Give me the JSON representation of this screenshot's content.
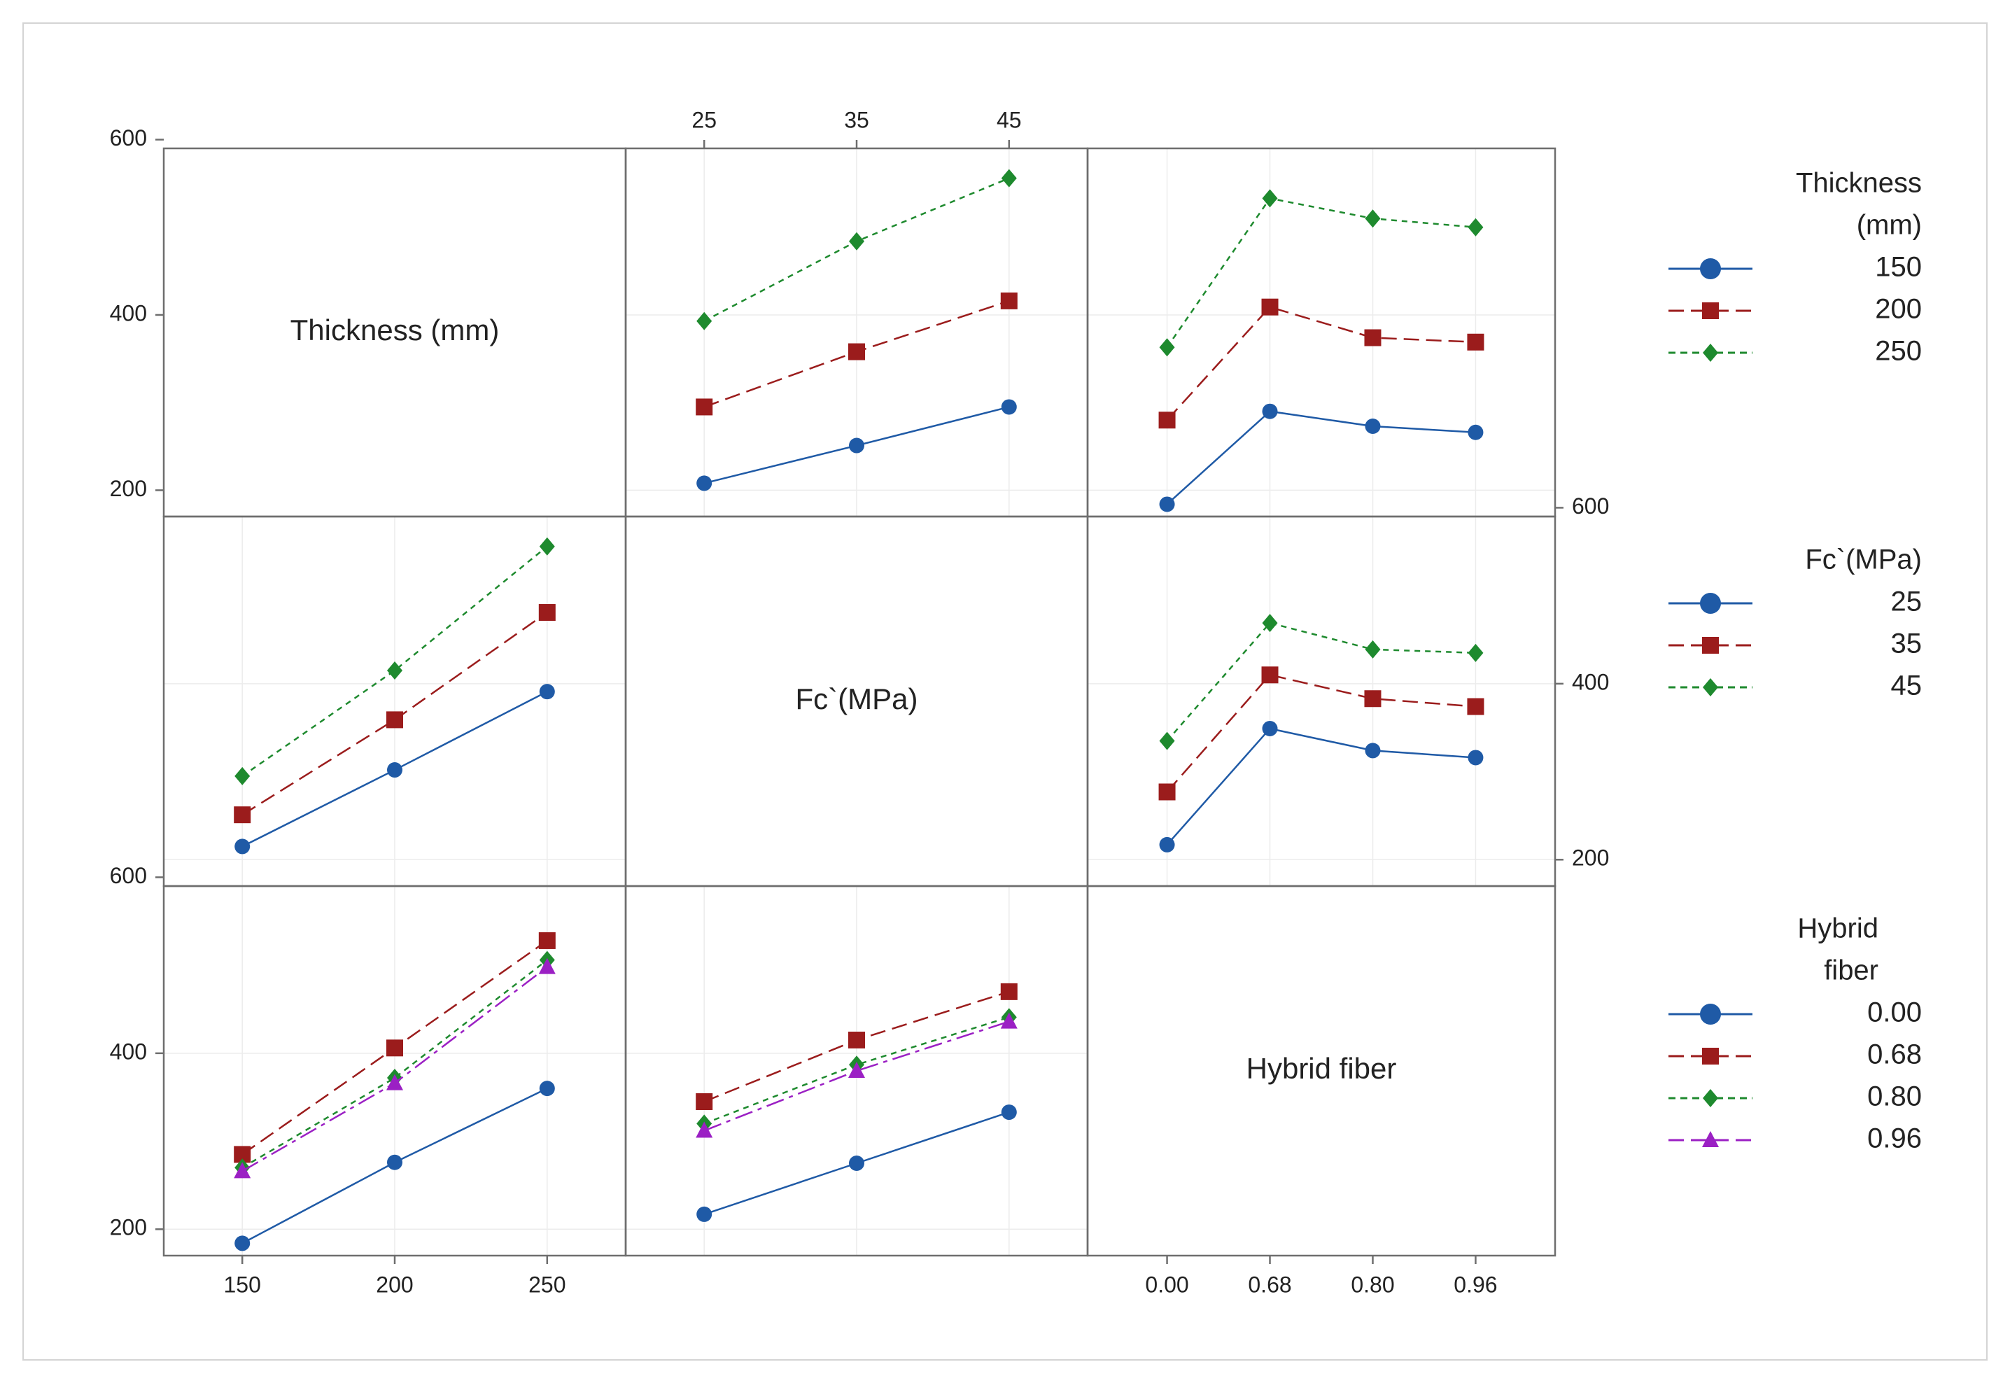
{
  "chart_data": {
    "type": "line",
    "kind": "interaction plot matrix",
    "factors": [
      {
        "key": "thickness",
        "name": "Thickness (mm)",
        "levels": [
          "150",
          "200",
          "250"
        ],
        "level_values": [
          150,
          200,
          250
        ]
      },
      {
        "key": "fc",
        "name": "Fc`(MPa)",
        "levels": [
          "25",
          "35",
          "45"
        ],
        "level_values": [
          25,
          35,
          45
        ]
      },
      {
        "key": "fiber",
        "name": "Hybrid fiber",
        "levels": [
          "0.00",
          "0.68",
          "0.80",
          "0.96"
        ],
        "level_values": [
          0.0,
          0.68,
          0.8,
          0.96
        ]
      }
    ],
    "y_range": [
      170,
      590
    ],
    "y_ticks": [
      200,
      400,
      600
    ],
    "legends": [
      {
        "key": "thickness",
        "title_lines": [
          "Thickness",
          "(mm)"
        ],
        "entries": [
          "150",
          "200",
          "250"
        ]
      },
      {
        "key": "fc",
        "title_lines": [
          "Fc`(MPa)"
        ],
        "entries": [
          "25",
          "35",
          "45"
        ]
      },
      {
        "key": "fiber",
        "title_lines": [
          "Hybrid",
          "fiber"
        ],
        "entries": [
          "0.00",
          "0.68",
          "0.80",
          "0.96"
        ]
      }
    ],
    "panels": [
      {
        "row": 0,
        "col": 1,
        "x_factor": "fc",
        "trace_factor": "thickness",
        "series": [
          {
            "name": "150",
            "values": [
              208,
              251,
              295
            ]
          },
          {
            "name": "200",
            "values": [
              295,
              358,
              416
            ]
          },
          {
            "name": "250",
            "values": [
              393,
              484,
              556
            ]
          }
        ]
      },
      {
        "row": 0,
        "col": 2,
        "x_factor": "fiber",
        "trace_factor": "thickness",
        "series": [
          {
            "name": "150",
            "values": [
              184,
              290,
              273,
              266
            ]
          },
          {
            "name": "200",
            "values": [
              280,
              409,
              374,
              369
            ]
          },
          {
            "name": "250",
            "values": [
              363,
              533,
              510,
              500
            ]
          }
        ]
      },
      {
        "row": 1,
        "col": 0,
        "x_factor": "thickness",
        "trace_factor": "fc",
        "series": [
          {
            "name": "25",
            "values": [
              215,
              302,
              391
            ]
          },
          {
            "name": "35",
            "values": [
              251,
              359,
              481
            ]
          },
          {
            "name": "45",
            "values": [
              295,
              415,
              556
            ]
          }
        ]
      },
      {
        "row": 1,
        "col": 2,
        "x_factor": "fiber",
        "trace_factor": "fc",
        "series": [
          {
            "name": "25",
            "values": [
              217,
              349,
              324,
              316
            ]
          },
          {
            "name": "35",
            "values": [
              277,
              410,
              383,
              374
            ]
          },
          {
            "name": "45",
            "values": [
              335,
              469,
              439,
              435
            ]
          }
        ]
      },
      {
        "row": 2,
        "col": 0,
        "x_factor": "thickness",
        "trace_factor": "fiber",
        "series": [
          {
            "name": "0.00",
            "values": [
              184,
              276,
              360
            ]
          },
          {
            "name": "0.68",
            "values": [
              285,
              406,
              528
            ]
          },
          {
            "name": "0.80",
            "values": [
              270,
              372,
              506
            ]
          },
          {
            "name": "0.96",
            "values": [
              266,
              366,
              498
            ]
          }
        ]
      },
      {
        "row": 2,
        "col": 1,
        "x_factor": "fc",
        "trace_factor": "fiber",
        "series": [
          {
            "name": "0.00",
            "values": [
              217,
              275,
              333
            ]
          },
          {
            "name": "0.68",
            "values": [
              345,
              415,
              470
            ]
          },
          {
            "name": "0.80",
            "values": [
              320,
              387,
              441
            ]
          },
          {
            "name": "0.96",
            "values": [
              312,
              380,
              436
            ]
          }
        ]
      }
    ]
  },
  "colors": {
    "series": [
      "#1f5aa6",
      "#9b1c1c",
      "#1e8a2e",
      "#9b20c4"
    ],
    "frame": "#6e6e6e",
    "grid": "#ececec",
    "text": "#222222"
  }
}
